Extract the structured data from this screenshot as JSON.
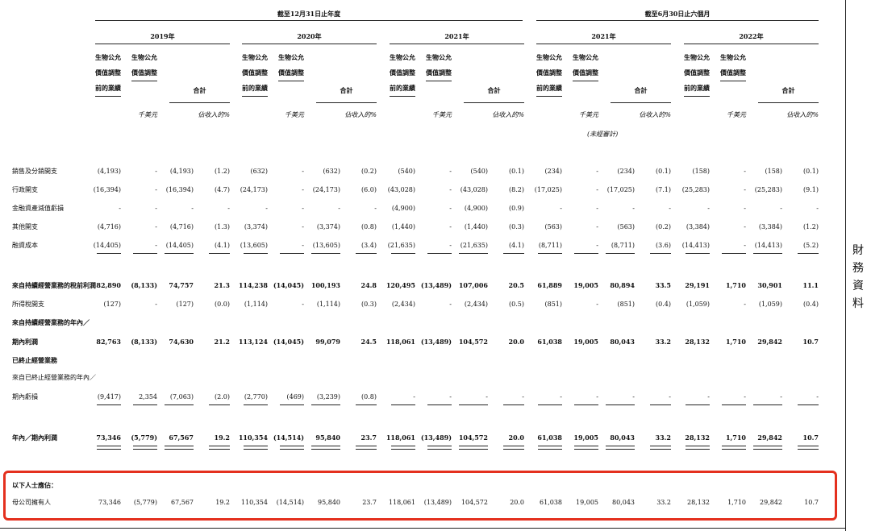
{
  "header": {
    "period_full_year": "截至12月31日止年度",
    "period_six_months": "截至6月30日止六個月",
    "years": [
      "2019年",
      "2020年",
      "2021年",
      "2021年",
      "2022年"
    ],
    "sub_col1": [
      "生物公允",
      "價值調整",
      "前的業績"
    ],
    "sub_col2": [
      "生物公允",
      "價值調整"
    ],
    "sub_total": "合計",
    "unit_thousand": "千美元",
    "unit_pct": "佔收入的%",
    "unaudited": "(未經審計)"
  },
  "side_label": "財務資料",
  "rows": [
    {
      "label": "銷售及分銷開支",
      "bold": false,
      "values": [
        "(4,193)",
        "-",
        "(4,193)",
        "(1.2)",
        "(632)",
        "-",
        "(632)",
        "(0.2)",
        "(540)",
        "-",
        "(540)",
        "(0.1)",
        "(234)",
        "-",
        "(234)",
        "(0.1)",
        "(158)",
        "-",
        "(158)",
        "(0.1)"
      ]
    },
    {
      "label": "行政開支",
      "bold": false,
      "values": [
        "(16,394)",
        "-",
        "(16,394)",
        "(4.7)",
        "(24,173)",
        "-",
        "(24,173)",
        "(6.0)",
        "(43,028)",
        "-",
        "(43,028)",
        "(8.2)",
        "(17,025)",
        "-",
        "(17,025)",
        "(7.1)",
        "(25,283)",
        "-",
        "(25,283)",
        "(9.1)"
      ]
    },
    {
      "label": "金融資產減值虧損",
      "bold": false,
      "values": [
        "-",
        "-",
        "-",
        "-",
        "-",
        "-",
        "-",
        "-",
        "(4,900)",
        "-",
        "(4,900)",
        "(0.9)",
        "-",
        "-",
        "-",
        "-",
        "-",
        "-",
        "-",
        "-"
      ]
    },
    {
      "label": "其他開支",
      "bold": false,
      "values": [
        "(4,716)",
        "-",
        "(4,716)",
        "(1.3)",
        "(3,374)",
        "-",
        "(3,374)",
        "(0.8)",
        "(1,440)",
        "-",
        "(1,440)",
        "(0.3)",
        "(563)",
        "-",
        "(563)",
        "(0.2)",
        "(3,384)",
        "-",
        "(3,384)",
        "(1.2)"
      ]
    },
    {
      "label": "融資成本",
      "bold": false,
      "values": [
        "(14,405)",
        "-",
        "(14,405)",
        "(4.1)",
        "(13,605)",
        "-",
        "(13,605)",
        "(3.4)",
        "(21,635)",
        "-",
        "(21,635)",
        "(4.1)",
        "(8,711)",
        "-",
        "(8,711)",
        "(3.6)",
        "(14,413)",
        "-",
        "(14,413)",
        "(5.2)"
      ]
    },
    {
      "label": "來自持續經營業務的稅前利潤",
      "bold": true,
      "values": [
        "82,890",
        "(8,133)",
        "74,757",
        "21.3",
        "114,238",
        "(14,045)",
        "100,193",
        "24.8",
        "120,495",
        "(13,489)",
        "107,006",
        "20.5",
        "61,889",
        "19,005",
        "80,894",
        "33.5",
        "29,191",
        "1,710",
        "30,901",
        "11.1"
      ]
    },
    {
      "label": "所得稅開支",
      "bold": false,
      "values": [
        "(127)",
        "-",
        "(127)",
        "(0.0)",
        "(1,114)",
        "-",
        "(1,114)",
        "(0.3)",
        "(2,434)",
        "-",
        "(2,434)",
        "(0.5)",
        "(851)",
        "-",
        "(851)",
        "(0.4)",
        "(1,059)",
        "-",
        "(1,059)",
        "(0.4)"
      ]
    },
    {
      "label": "來自持續經營業務的年內／",
      "bold": true,
      "values": []
    },
    {
      "label": "期內利潤",
      "bold": true,
      "values": [
        "82,763",
        "(8,133)",
        "74,630",
        "21.2",
        "113,124",
        "(14,045)",
        "99,079",
        "24.5",
        "118,061",
        "(13,489)",
        "104,572",
        "20.0",
        "61,038",
        "19,005",
        "80,043",
        "33.2",
        "28,132",
        "1,710",
        "29,842",
        "10.7"
      ]
    },
    {
      "label": "已終止經營業務",
      "bold": true,
      "values": []
    },
    {
      "label": "來自已終止經營業務的年內／",
      "bold": false,
      "values": []
    },
    {
      "label": "期內虧損",
      "bold": false,
      "values": [
        "(9,417)",
        "2,354",
        "(7,063)",
        "(2.0)",
        "(2,770)",
        "(469)",
        "(3,239)",
        "(0.8)",
        "-",
        "-",
        "-",
        "-",
        "-",
        "-",
        "-",
        "-",
        "-",
        "-",
        "-",
        "-"
      ]
    },
    {
      "label": "年內／期內利潤",
      "bold": true,
      "values": [
        "73,346",
        "(5,779)",
        "67,567",
        "19.2",
        "110,354",
        "(14,514)",
        "95,840",
        "23.7",
        "118,061",
        "(13,489)",
        "104,572",
        "20.0",
        "61,038",
        "19,005",
        "80,043",
        "33.2",
        "28,132",
        "1,710",
        "29,842",
        "10.7"
      ]
    },
    {
      "label": "以下人士應佔：",
      "bold": true,
      "values": []
    },
    {
      "label": "母公司擁有人",
      "bold": false,
      "values": [
        "73,346",
        "(5,779)",
        "67,567",
        "19.2",
        "110,354",
        "(14,514)",
        "95,840",
        "23.7",
        "118,061",
        "(13,489)",
        "104,572",
        "20.0",
        "61,038",
        "19,005",
        "80,043",
        "33.2",
        "28,132",
        "1,710",
        "29,842",
        "10.7"
      ]
    }
  ]
}
